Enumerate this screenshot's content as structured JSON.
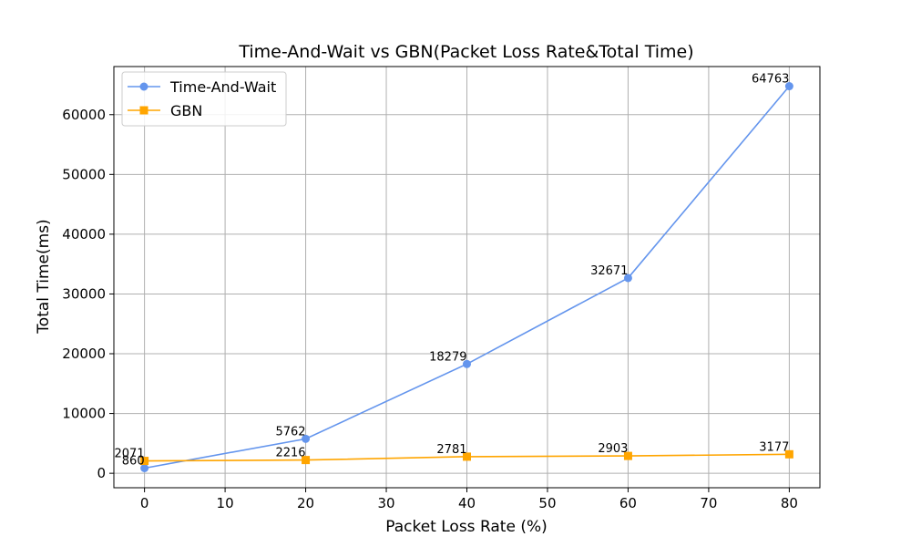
{
  "chart_data": {
    "type": "line",
    "title": "Time-And-Wait vs GBN(Packet Loss Rate&Total Time)",
    "xlabel": "Packet Loss Rate (%)",
    "ylabel": "Total Time(ms)",
    "x": [
      0,
      20,
      40,
      60,
      80
    ],
    "xlim": [
      -3.8,
      83.8
    ],
    "ylim": [
      -2419,
      68047
    ],
    "xticks": [
      0,
      10,
      20,
      30,
      40,
      50,
      60,
      70,
      80
    ],
    "yticks": [
      0,
      10000,
      20000,
      30000,
      40000,
      50000,
      60000
    ],
    "grid": true,
    "legend_position": "top-left",
    "series": [
      {
        "name": "Time-And-Wait",
        "values": [
          860,
          5762,
          18279,
          32671,
          64763
        ],
        "color": "#6495ED",
        "marker": "circle"
      },
      {
        "name": "GBN",
        "values": [
          2071,
          2216,
          2781,
          2903,
          3177
        ],
        "color": "#FFA500",
        "marker": "square"
      }
    ]
  }
}
